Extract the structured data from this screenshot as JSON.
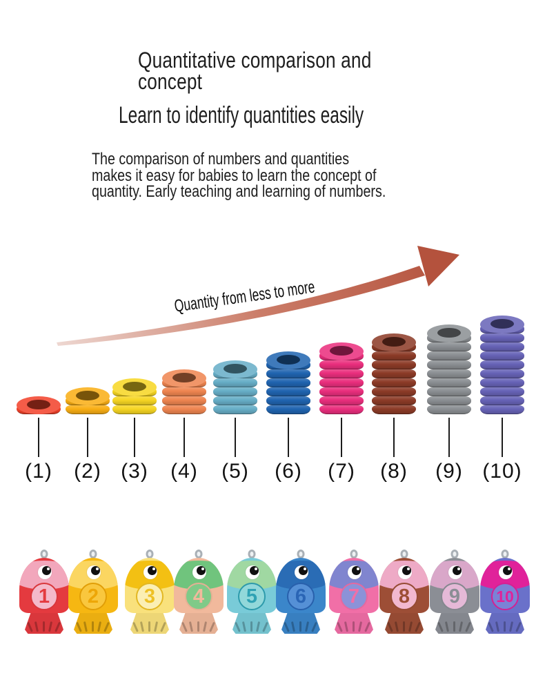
{
  "header": {
    "title_lines": [
      "Quantitative comparison and",
      "concept"
    ],
    "subtitle": "Learn to identify quantities easily",
    "description_lines": [
      "The comparison of numbers and quantities",
      "makes it easy for babies to learn the concept of",
      "quantity. Early teaching and learning of numbers."
    ]
  },
  "arrow": {
    "label": "Quantity from less to more",
    "head_color": "#b4523d",
    "tail_color": "#eed8d2"
  },
  "stacks": [
    {
      "label": "(1)",
      "count": 1,
      "color": "#f2422a"
    },
    {
      "label": "(2)",
      "count": 2,
      "color": "#f9ae14"
    },
    {
      "label": "(3)",
      "count": 3,
      "color": "#f7d623"
    },
    {
      "label": "(4)",
      "count": 4,
      "color": "#ef8550"
    },
    {
      "label": "(5)",
      "count": 5,
      "color": "#67aec7"
    },
    {
      "label": "(6)",
      "count": 6,
      "color": "#2064b0"
    },
    {
      "label": "(7)",
      "count": 7,
      "color": "#ea2e7d"
    },
    {
      "label": "(8)",
      "count": 8,
      "color": "#8c3b27"
    },
    {
      "label": "(9)",
      "count": 9,
      "color": "#8b8f93"
    },
    {
      "label": "(10)",
      "count": 10,
      "color": "#6763b7"
    }
  ],
  "fish": [
    {
      "number": "1",
      "body_color": "#e43a3f",
      "head_color": "#f2a7bc",
      "circle_color": "#f4b9ca",
      "numeral_color": "#e43a3f"
    },
    {
      "number": "2",
      "body_color": "#f6b712",
      "head_color": "#fbd661",
      "circle_color": "#f9c73e",
      "numeral_color": "#eda607"
    },
    {
      "number": "3",
      "body_color": "#f9e17c",
      "head_color": "#f3c013",
      "circle_color": "#fbefb4",
      "numeral_color": "#eec125"
    },
    {
      "number": "4",
      "body_color": "#f1b99c",
      "head_color": "#70c47d",
      "circle_color": "#7fca88",
      "numeral_color": "#f1b99c"
    },
    {
      "number": "5",
      "body_color": "#79cbd8",
      "head_color": "#a0d8a2",
      "circle_color": "#92d8da",
      "numeral_color": "#2fa2b4"
    },
    {
      "number": "6",
      "body_color": "#3b86ca",
      "head_color": "#2a6cb5",
      "circle_color": "#5590d6",
      "numeral_color": "#2a65b5"
    },
    {
      "number": "7",
      "body_color": "#f16fa7",
      "head_color": "#8085cf",
      "circle_color": "#8c92d8",
      "numeral_color": "#f16fa7"
    },
    {
      "number": "8",
      "body_color": "#9d4e36",
      "head_color": "#eeaac6",
      "circle_color": "#f2b8cf",
      "numeral_color": "#9d4e36"
    },
    {
      "number": "9",
      "body_color": "#8b8e95",
      "head_color": "#d9a7c9",
      "circle_color": "#e5b9d7",
      "numeral_color": "#8b8e95"
    },
    {
      "number": "10",
      "body_color": "#6a71ca",
      "head_color": "#e0229a",
      "circle_color": "#7b82d6",
      "numeral_color": "#e0229a"
    }
  ]
}
